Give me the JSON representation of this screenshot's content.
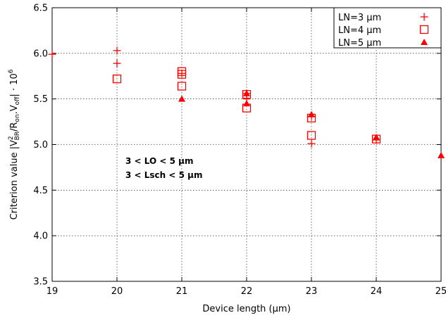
{
  "chart_data": {
    "type": "scatter",
    "xlabel": "Device length (μm)",
    "ylabel_parts": {
      "prefix": "Criterion value |V",
      "sub1": "BR",
      "sup1": "2",
      "mid1": "/R",
      "sub2": "on",
      "mid2": ".V",
      "sub3": "off",
      "mid3": "| · 10",
      "sup2": "6"
    },
    "xlim": [
      19,
      25
    ],
    "ylim": [
      3.5,
      6.5
    ],
    "xticks": [
      19,
      20,
      21,
      22,
      23,
      24,
      25
    ],
    "yticks": [
      3.5,
      4.0,
      4.5,
      5.0,
      5.5,
      6.0,
      6.5
    ],
    "xtick_labels": [
      "19",
      "20",
      "21",
      "22",
      "23",
      "24",
      "25"
    ],
    "ytick_labels": [
      "3.5",
      "4.0",
      "4.5",
      "5.0",
      "5.5",
      "6.0",
      "6.5"
    ],
    "grid": true,
    "legend_position": "top-right",
    "color": "#ff0000",
    "series": [
      {
        "name": "LN=3 μm",
        "marker": "plus",
        "points": [
          [
            19.0,
            5.99
          ],
          [
            20,
            6.03
          ],
          [
            20,
            5.89
          ],
          [
            21,
            5.78
          ],
          [
            22,
            5.56
          ],
          [
            22,
            5.5
          ],
          [
            23,
            5.31
          ],
          [
            23,
            5.01
          ],
          [
            24,
            5.05
          ]
        ]
      },
      {
        "name": "LN=4 μm",
        "marker": "square",
        "points": [
          [
            20,
            5.72
          ],
          [
            21,
            5.8
          ],
          [
            21,
            5.77
          ],
          [
            21,
            5.64
          ],
          [
            22,
            5.55
          ],
          [
            22,
            5.4
          ],
          [
            23,
            5.29
          ],
          [
            23,
            5.1
          ],
          [
            24,
            5.06
          ]
        ]
      },
      {
        "name": "LN=5 μm",
        "marker": "triangle",
        "points": [
          [
            21,
            5.5
          ],
          [
            22,
            5.56
          ],
          [
            22,
            5.45
          ],
          [
            23,
            5.33
          ],
          [
            24,
            5.08
          ],
          [
            25,
            4.88
          ]
        ]
      }
    ],
    "annotations": [
      "3 < LO < 5 μm",
      "3 < Lsch < 5 μm"
    ]
  }
}
